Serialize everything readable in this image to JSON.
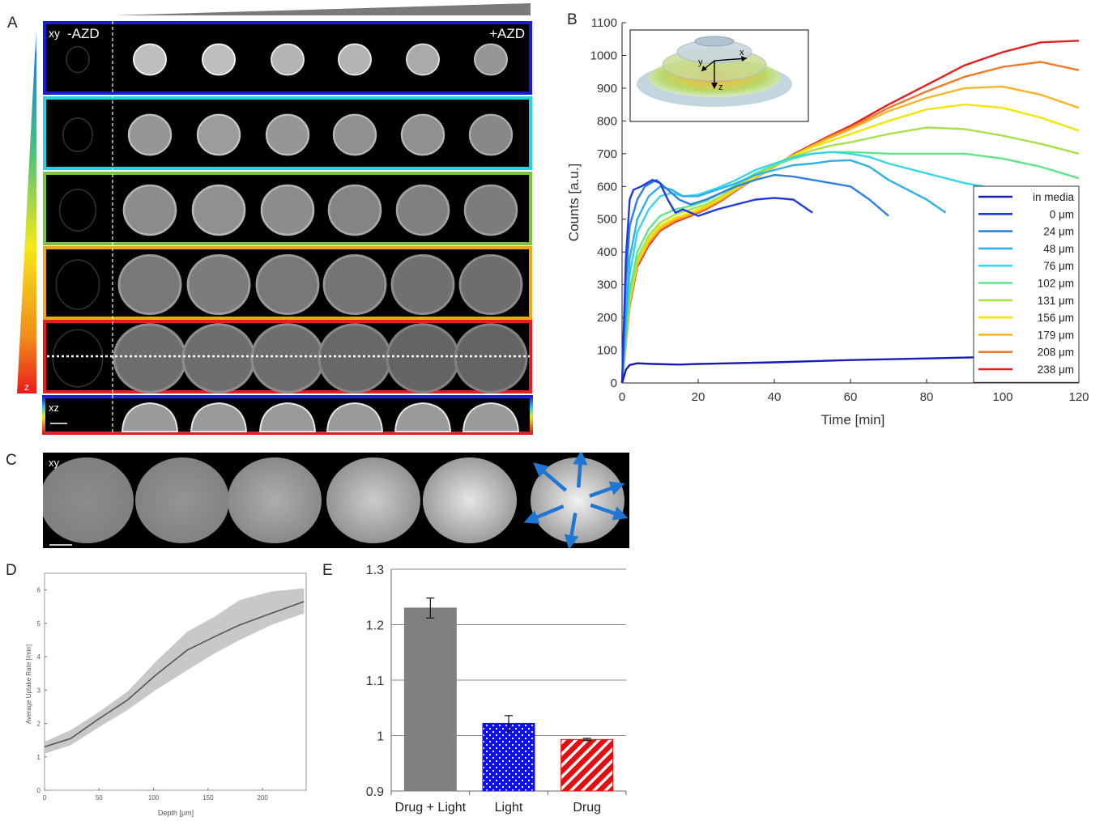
{
  "panels": {
    "A": "A",
    "B": "B",
    "C": "C",
    "D": "D",
    "E": "E"
  },
  "panel_a": {
    "xy_label": "xy",
    "minus_label": "-AZD",
    "plus_label": "+AZD",
    "xz_label": "xz",
    "z_label": "z",
    "row_colors": [
      "#1a1ad6",
      "#27d0e0",
      "#7cc240",
      "#e8a817",
      "#e02020"
    ],
    "spheroid_brightness": [
      [
        0.95,
        0.95,
        0.9,
        0.9,
        0.85,
        0.75
      ],
      [
        0.75,
        0.78,
        0.75,
        0.72,
        0.72,
        0.68
      ],
      [
        0.7,
        0.72,
        0.7,
        0.66,
        0.64,
        0.62
      ],
      [
        0.6,
        0.62,
        0.6,
        0.58,
        0.56,
        0.55
      ],
      [
        0.55,
        0.55,
        0.55,
        0.52,
        0.5,
        0.5
      ]
    ]
  },
  "panel_b_inset": {
    "x_axis": "x",
    "y_axis": "y",
    "z_axis": "z"
  },
  "panel_c": {
    "xy_label": "xy",
    "brightness": [
      0.55,
      0.58,
      0.68,
      0.8,
      0.9,
      0.95
    ],
    "arrow_color": "#1f77d4"
  },
  "chart_data": [
    {
      "id": "B",
      "type": "line",
      "xlabel": "Time [min]",
      "ylabel": "Counts [a.u.]",
      "xlim": [
        0,
        120
      ],
      "ylim": [
        0,
        1100
      ],
      "xticks": [
        0,
        20,
        40,
        60,
        80,
        100,
        120
      ],
      "yticks": [
        0,
        100,
        200,
        300,
        400,
        500,
        600,
        700,
        800,
        900,
        1000,
        1100
      ],
      "grid": false,
      "legend_position": "bottom-right",
      "series": [
        {
          "name": "in media",
          "color": "#1a1ab5",
          "x": [
            0,
            1,
            2,
            4,
            8,
            15,
            20,
            40,
            60,
            80,
            100,
            120
          ],
          "y": [
            0,
            40,
            55,
            60,
            58,
            56,
            58,
            63,
            70,
            75,
            80,
            85
          ]
        },
        {
          "name": "0 μm",
          "color": "#1f3ae0",
          "x": [
            0,
            1,
            2,
            3,
            5,
            8,
            10,
            12,
            14,
            16,
            20,
            25,
            30,
            35,
            40,
            45,
            50
          ],
          "y": [
            0,
            380,
            560,
            590,
            600,
            620,
            610,
            560,
            520,
            530,
            510,
            530,
            545,
            560,
            565,
            560,
            520
          ]
        },
        {
          "name": "24 μm",
          "color": "#2d7fe0",
          "x": [
            0,
            1,
            2,
            4,
            6,
            9,
            12,
            15,
            18,
            22,
            26,
            30,
            35,
            40,
            45,
            50,
            55,
            60,
            65,
            70
          ],
          "y": [
            0,
            300,
            480,
            560,
            600,
            620,
            590,
            560,
            545,
            560,
            580,
            600,
            620,
            635,
            630,
            620,
            610,
            600,
            560,
            510
          ]
        },
        {
          "name": "48 μm",
          "color": "#2fb0ea",
          "x": [
            0,
            2,
            4,
            7,
            10,
            13,
            16,
            20,
            25,
            30,
            35,
            40,
            45,
            50,
            55,
            60,
            65,
            70,
            75,
            80,
            85
          ],
          "y": [
            0,
            380,
            500,
            570,
            600,
            590,
            570,
            570,
            590,
            610,
            635,
            650,
            665,
            670,
            678,
            680,
            660,
            620,
            590,
            560,
            520
          ]
        },
        {
          "name": "76 μm",
          "color": "#37d6e6",
          "x": [
            0,
            2,
            4,
            7,
            10,
            13,
            16,
            20,
            25,
            30,
            35,
            40,
            45,
            50,
            55,
            60,
            65,
            70,
            80,
            90,
            95
          ],
          "y": [
            0,
            330,
            460,
            530,
            570,
            580,
            570,
            575,
            595,
            620,
            650,
            670,
            690,
            700,
            705,
            700,
            690,
            670,
            640,
            610,
            600
          ]
        },
        {
          "name": "102 μm",
          "color": "#5fe68a",
          "x": [
            0,
            2,
            4,
            7,
            10,
            14,
            18,
            22,
            26,
            30,
            35,
            40,
            45,
            50,
            55,
            60,
            70,
            80,
            90,
            100,
            110,
            120
          ],
          "y": [
            0,
            280,
            400,
            470,
            510,
            530,
            540,
            555,
            580,
            605,
            640,
            665,
            685,
            700,
            705,
            705,
            700,
            700,
            700,
            685,
            660,
            625
          ]
        },
        {
          "name": "131 μm",
          "color": "#a8e04a",
          "x": [
            0,
            2,
            4,
            7,
            10,
            14,
            18,
            22,
            26,
            30,
            35,
            40,
            45,
            50,
            55,
            60,
            70,
            80,
            90,
            100,
            110,
            120
          ],
          "y": [
            0,
            260,
            380,
            450,
            490,
            515,
            530,
            545,
            570,
            600,
            635,
            665,
            690,
            710,
            725,
            735,
            760,
            780,
            775,
            755,
            730,
            700
          ]
        },
        {
          "name": "156 μm",
          "color": "#f2e600",
          "x": [
            0,
            2,
            4,
            7,
            10,
            14,
            18,
            22,
            26,
            30,
            35,
            40,
            45,
            50,
            55,
            60,
            70,
            80,
            90,
            100,
            110,
            120
          ],
          "y": [
            0,
            250,
            370,
            440,
            480,
            505,
            520,
            540,
            565,
            595,
            630,
            665,
            695,
            720,
            740,
            760,
            800,
            835,
            850,
            840,
            810,
            770
          ]
        },
        {
          "name": "179 μm",
          "color": "#f5b524",
          "x": [
            0,
            2,
            4,
            7,
            10,
            14,
            18,
            22,
            26,
            30,
            35,
            40,
            45,
            50,
            55,
            60,
            70,
            80,
            90,
            100,
            110,
            120
          ],
          "y": [
            0,
            245,
            365,
            430,
            472,
            500,
            515,
            535,
            560,
            590,
            625,
            660,
            695,
            725,
            750,
            775,
            830,
            870,
            900,
            905,
            880,
            840
          ]
        },
        {
          "name": "208 μm",
          "color": "#f07a25",
          "x": [
            0,
            2,
            4,
            7,
            10,
            14,
            18,
            22,
            26,
            30,
            35,
            40,
            45,
            50,
            55,
            60,
            70,
            80,
            90,
            100,
            110,
            120
          ],
          "y": [
            0,
            240,
            360,
            425,
            468,
            495,
            512,
            532,
            558,
            590,
            625,
            660,
            695,
            725,
            755,
            780,
            840,
            890,
            935,
            965,
            980,
            955
          ]
        },
        {
          "name": "238 μm",
          "color": "#e61e1e",
          "x": [
            0,
            2,
            4,
            7,
            10,
            14,
            18,
            22,
            26,
            30,
            35,
            40,
            45,
            50,
            55,
            60,
            70,
            80,
            90,
            100,
            105,
            110,
            120
          ],
          "y": [
            0,
            235,
            355,
            420,
            465,
            492,
            510,
            530,
            556,
            588,
            625,
            662,
            698,
            728,
            758,
            785,
            850,
            910,
            970,
            1010,
            1025,
            1040,
            1045
          ]
        }
      ]
    },
    {
      "id": "D",
      "type": "area",
      "xlabel": "Depth [μm]",
      "ylabel": "Average Uptake Rate [/min]",
      "xlim": [
        0,
        240
      ],
      "ylim": [
        0,
        6.5
      ],
      "xticks": [
        0,
        50,
        100,
        150,
        200
      ],
      "yticks": [
        0,
        1,
        2,
        3,
        4,
        5,
        6
      ],
      "x": [
        0,
        24,
        48,
        76,
        102,
        131,
        156,
        179,
        208,
        238
      ],
      "mean": [
        1.3,
        1.55,
        2.1,
        2.7,
        3.45,
        4.2,
        4.6,
        4.95,
        5.3,
        5.65
      ],
      "lower": [
        1.1,
        1.35,
        1.85,
        2.4,
        3.0,
        3.6,
        4.1,
        4.5,
        4.95,
        5.3
      ],
      "upper": [
        1.45,
        1.8,
        2.3,
        2.95,
        3.85,
        4.75,
        5.2,
        5.7,
        5.95,
        6.05
      ]
    },
    {
      "id": "E",
      "type": "bar",
      "categories": [
        "Drug + Light",
        "Light",
        "Drug"
      ],
      "values": [
        1.23,
        1.022,
        0.993
      ],
      "errors": [
        0.018,
        0.014,
        0.002
      ],
      "ylim": [
        0.9,
        1.3
      ],
      "yticks": [
        "0.9",
        "1",
        "1.1",
        "1.2",
        "1.3"
      ],
      "grid": true,
      "colors": [
        "#808080",
        "#1010e0",
        "#e01010"
      ],
      "patterns": [
        "solid",
        "dots",
        "stripes"
      ]
    }
  ]
}
